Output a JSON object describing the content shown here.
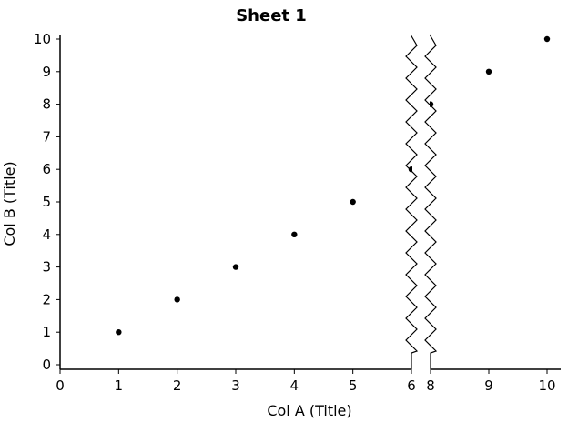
{
  "chart_data": {
    "type": "scatter",
    "title": "Sheet 1",
    "xlabel": "Col A (Title)",
    "ylabel": "Col B (Title)",
    "x_axis_break": [
      6,
      8
    ],
    "xlim": [
      0,
      10
    ],
    "ylim": [
      0,
      10
    ],
    "x_ticks": [
      "0",
      "1",
      "2",
      "3",
      "4",
      "5",
      "6",
      "8",
      "9",
      "10"
    ],
    "y_ticks": [
      "0",
      "1",
      "2",
      "3",
      "4",
      "5",
      "6",
      "7",
      "8",
      "9",
      "10"
    ],
    "grid": false,
    "point_color": "#000000",
    "series": [
      {
        "x": [
          1,
          2,
          3,
          4,
          5,
          6,
          8,
          9,
          10
        ],
        "y": [
          1,
          2,
          3,
          4,
          5,
          6,
          8,
          9,
          10
        ]
      }
    ]
  }
}
